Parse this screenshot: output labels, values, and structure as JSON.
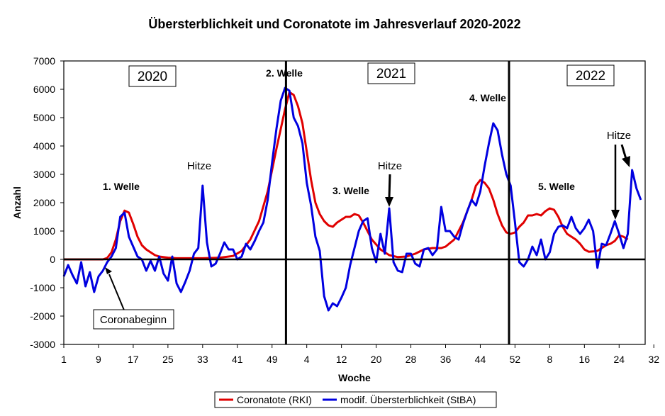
{
  "chart_data": {
    "type": "line",
    "title": "Übersterblichkeit und Coronatote im Jahresverlauf  2020-2022",
    "xlabel": "Woche",
    "ylabel": "Anzahl",
    "ylim": [
      -3000,
      7000
    ],
    "yticks": [
      "7000",
      "6000",
      "5000",
      "4000",
      "3000",
      "2000",
      "1000",
      "0",
      "-1000",
      "-2000",
      "-3000"
    ],
    "xtick_labels": [
      "1",
      "9",
      "17",
      "25",
      "33",
      "41",
      "49",
      "4",
      "12",
      "20",
      "28",
      "36",
      "44",
      "52",
      "8",
      "16",
      "24",
      "32"
    ],
    "grid": false,
    "legend_position": "bottom",
    "year_labels": [
      "2020",
      "2021",
      "2022"
    ],
    "wave_labels": [
      "1.  Welle",
      "2.  Welle",
      "3.  Welle",
      "4.  Welle",
      "5.  Welle"
    ],
    "annotations": {
      "hitze_1": "Hitze",
      "hitze_2": "Hitze",
      "hitze_3": "Hitze",
      "coronabeginn": "Coronabeginn"
    },
    "series": [
      {
        "name": "Coronatote   (RKI)",
        "color": "#e00000",
        "points": [
          [
            1,
            0
          ],
          [
            10,
            0
          ],
          [
            11,
            50
          ],
          [
            12,
            250
          ],
          [
            13,
            700
          ],
          [
            14,
            1350
          ],
          [
            15,
            1720
          ],
          [
            16,
            1650
          ],
          [
            17,
            1250
          ],
          [
            18,
            800
          ],
          [
            19,
            500
          ],
          [
            20,
            350
          ],
          [
            21,
            250
          ],
          [
            22,
            150
          ],
          [
            23,
            100
          ],
          [
            25,
            60
          ],
          [
            27,
            40
          ],
          [
            33,
            40
          ],
          [
            37,
            60
          ],
          [
            40,
            120
          ],
          [
            42,
            300
          ],
          [
            44,
            700
          ],
          [
            46,
            1350
          ],
          [
            48,
            2400
          ],
          [
            50,
            3900
          ],
          [
            52,
            5300
          ],
          [
            53,
            5900
          ],
          [
            54,
            5800
          ],
          [
            55,
            5400
          ],
          [
            56,
            4800
          ],
          [
            57,
            3800
          ],
          [
            58,
            2800
          ],
          [
            59,
            2000
          ],
          [
            60,
            1600
          ],
          [
            61,
            1350
          ],
          [
            62,
            1200
          ],
          [
            63,
            1150
          ],
          [
            64,
            1300
          ],
          [
            66,
            1500
          ],
          [
            67,
            1500
          ],
          [
            68,
            1600
          ],
          [
            69,
            1550
          ],
          [
            70,
            1300
          ],
          [
            71,
            1000
          ],
          [
            72,
            700
          ],
          [
            74,
            350
          ],
          [
            76,
            150
          ],
          [
            78,
            80
          ],
          [
            80,
            100
          ],
          [
            82,
            200
          ],
          [
            84,
            350
          ],
          [
            86,
            400
          ],
          [
            88,
            400
          ],
          [
            89,
            450
          ],
          [
            91,
            700
          ],
          [
            93,
            1300
          ],
          [
            95,
            2100
          ],
          [
            96,
            2600
          ],
          [
            97,
            2800
          ],
          [
            98,
            2700
          ],
          [
            99,
            2500
          ],
          [
            100,
            2100
          ],
          [
            101,
            1600
          ],
          [
            102,
            1200
          ],
          [
            103,
            950
          ],
          [
            104,
            900
          ],
          [
            105,
            950
          ],
          [
            106,
            1150
          ],
          [
            107,
            1300
          ],
          [
            108,
            1550
          ],
          [
            109,
            1550
          ],
          [
            110,
            1600
          ],
          [
            111,
            1550
          ],
          [
            112,
            1700
          ],
          [
            113,
            1800
          ],
          [
            114,
            1750
          ],
          [
            115,
            1500
          ],
          [
            116,
            1150
          ],
          [
            117,
            900
          ],
          [
            118,
            800
          ],
          [
            119,
            700
          ],
          [
            120,
            550
          ],
          [
            121,
            350
          ],
          [
            122,
            270
          ],
          [
            123,
            280
          ],
          [
            124,
            300
          ],
          [
            125,
            400
          ],
          [
            126,
            500
          ],
          [
            127,
            550
          ],
          [
            128,
            650
          ],
          [
            129,
            850
          ],
          [
            130,
            800
          ],
          [
            131,
            700
          ]
        ]
      },
      {
        "name": "modif.  Übersterblichkeit   (StBA)",
        "color": "#0000e0",
        "points": [
          [
            1,
            -600
          ],
          [
            2,
            -200
          ],
          [
            3,
            -550
          ],
          [
            4,
            -850
          ],
          [
            5,
            -100
          ],
          [
            6,
            -950
          ],
          [
            7,
            -450
          ],
          [
            8,
            -1150
          ],
          [
            9,
            -600
          ],
          [
            10,
            -400
          ],
          [
            11,
            -100
          ],
          [
            12,
            100
          ],
          [
            13,
            400
          ],
          [
            14,
            1500
          ],
          [
            15,
            1650
          ],
          [
            16,
            800
          ],
          [
            17,
            450
          ],
          [
            18,
            100
          ],
          [
            19,
            0
          ],
          [
            20,
            -400
          ],
          [
            21,
            -50
          ],
          [
            22,
            -400
          ],
          [
            23,
            100
          ],
          [
            24,
            -500
          ],
          [
            25,
            -750
          ],
          [
            26,
            100
          ],
          [
            27,
            -850
          ],
          [
            28,
            -1150
          ],
          [
            29,
            -800
          ],
          [
            30,
            -400
          ],
          [
            31,
            200
          ],
          [
            32,
            400
          ],
          [
            33,
            2600
          ],
          [
            34,
            600
          ],
          [
            35,
            -250
          ],
          [
            36,
            -150
          ],
          [
            37,
            200
          ],
          [
            38,
            600
          ],
          [
            39,
            350
          ],
          [
            40,
            350
          ],
          [
            41,
            0
          ],
          [
            42,
            100
          ],
          [
            43,
            550
          ],
          [
            44,
            350
          ],
          [
            45,
            650
          ],
          [
            46,
            1000
          ],
          [
            47,
            1300
          ],
          [
            48,
            2100
          ],
          [
            49,
            3400
          ],
          [
            50,
            4600
          ],
          [
            51,
            5600
          ],
          [
            52,
            6050
          ],
          [
            53,
            5950
          ],
          [
            54,
            5000
          ],
          [
            55,
            4700
          ],
          [
            56,
            4100
          ],
          [
            57,
            2700
          ],
          [
            58,
            1900
          ],
          [
            59,
            800
          ],
          [
            60,
            300
          ],
          [
            61,
            -1300
          ],
          [
            62,
            -1800
          ],
          [
            63,
            -1550
          ],
          [
            64,
            -1650
          ],
          [
            65,
            -1350
          ],
          [
            66,
            -1000
          ],
          [
            67,
            -200
          ],
          [
            68,
            400
          ],
          [
            69,
            1000
          ],
          [
            70,
            1350
          ],
          [
            71,
            1450
          ],
          [
            72,
            400
          ],
          [
            73,
            -100
          ],
          [
            74,
            900
          ],
          [
            75,
            200
          ],
          [
            76,
            1800
          ],
          [
            77,
            -100
          ],
          [
            78,
            -400
          ],
          [
            79,
            -450
          ],
          [
            80,
            200
          ],
          [
            81,
            200
          ],
          [
            82,
            -150
          ],
          [
            83,
            -250
          ],
          [
            84,
            350
          ],
          [
            85,
            400
          ],
          [
            86,
            150
          ],
          [
            87,
            350
          ],
          [
            88,
            1850
          ],
          [
            89,
            1000
          ],
          [
            90,
            1000
          ],
          [
            91,
            800
          ],
          [
            92,
            700
          ],
          [
            93,
            1250
          ],
          [
            94,
            1700
          ],
          [
            95,
            2100
          ],
          [
            96,
            1900
          ],
          [
            97,
            2400
          ],
          [
            98,
            3300
          ],
          [
            99,
            4100
          ],
          [
            100,
            4800
          ],
          [
            101,
            4550
          ],
          [
            102,
            3700
          ],
          [
            103,
            3000
          ],
          [
            104,
            2600
          ],
          [
            105,
            1300
          ],
          [
            106,
            -100
          ],
          [
            107,
            -250
          ],
          [
            108,
            0
          ],
          [
            109,
            450
          ],
          [
            110,
            150
          ],
          [
            111,
            700
          ],
          [
            112,
            0
          ],
          [
            113,
            250
          ],
          [
            114,
            900
          ],
          [
            115,
            1150
          ],
          [
            116,
            1200
          ],
          [
            117,
            1100
          ],
          [
            118,
            1500
          ],
          [
            119,
            1100
          ],
          [
            120,
            900
          ],
          [
            121,
            1100
          ],
          [
            122,
            1400
          ],
          [
            123,
            1000
          ],
          [
            124,
            -300
          ],
          [
            125,
            550
          ],
          [
            126,
            500
          ],
          [
            127,
            900
          ],
          [
            128,
            1350
          ],
          [
            129,
            900
          ],
          [
            130,
            400
          ],
          [
            131,
            900
          ],
          [
            132,
            3150
          ],
          [
            133,
            2500
          ],
          [
            134,
            2100
          ]
        ]
      }
    ]
  }
}
